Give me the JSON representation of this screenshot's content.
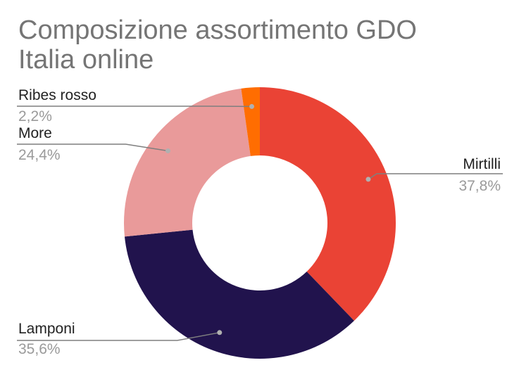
{
  "chart_data": {
    "type": "pie",
    "variant": "donut",
    "title": "Composizione assortimento GDO Italia online",
    "slices": [
      {
        "label": "Mirtilli",
        "value": 37.8,
        "display": "37,8%",
        "color": "#ea4335"
      },
      {
        "label": "Lamponi",
        "value": 35.6,
        "display": "35,6%",
        "color": "#21134d"
      },
      {
        "label": "More",
        "value": 24.4,
        "display": "24,4%",
        "color": "#e99a9a"
      },
      {
        "label": "Ribes rosso",
        "value": 2.2,
        "display": "2,2%",
        "color": "#ff6d01"
      }
    ],
    "legend": "none",
    "label_style": "callouts-with-leader-lines"
  }
}
